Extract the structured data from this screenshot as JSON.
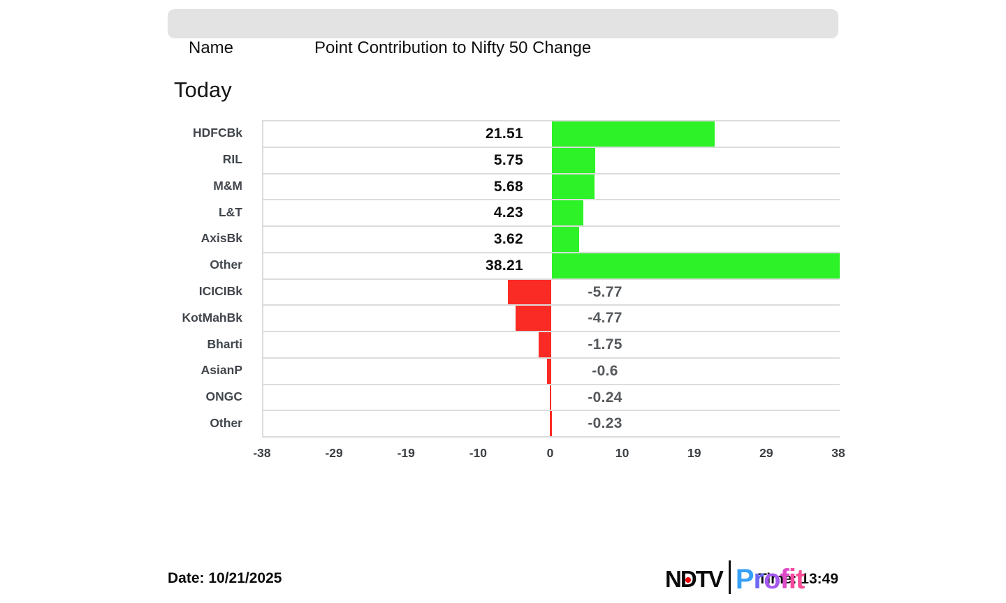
{
  "header": {
    "name_label": "Name",
    "title": "Point Contribution to Nifty 50 Change"
  },
  "period_label": "Today",
  "chart_data": {
    "type": "bar",
    "orientation": "horizontal",
    "title": "Point Contribution to Nifty 50 Change",
    "categories": [
      "HDFCBk",
      "RIL",
      "M&M",
      "L&T",
      "AxisBk",
      "Other",
      "ICICIBk",
      "KotMahBk",
      "Bharti",
      "AsianP",
      "ONGC",
      "Other"
    ],
    "values": [
      21.51,
      5.75,
      5.68,
      4.23,
      3.62,
      38.21,
      -5.77,
      -4.77,
      -1.75,
      -0.6,
      -0.24,
      -0.23
    ],
    "value_labels": [
      "21.51",
      "5.75",
      "5.68",
      "4.23",
      "3.62",
      "38.21",
      "-5.77",
      "-4.77",
      "-1.75",
      "-0.6",
      "-0.24",
      "-0.23"
    ],
    "xticks": [
      "-38",
      "-29",
      "-19",
      "-10",
      "0",
      "10",
      "19",
      "29",
      "38"
    ],
    "xlim": [
      -38,
      38
    ],
    "grid": false,
    "positive_color": "#2DF228",
    "negative_color": "#FA2B24",
    "legend": null
  },
  "footer": {
    "date": "Date: 10/21/2025",
    "time": "Time: 13:49"
  },
  "logo": {
    "ndtv_left": "N",
    "ndtv_d": "D",
    "ndtv_right": "TV",
    "dot_color": "#ee0000",
    "profit_letters": [
      {
        "ch": "P",
        "color": "#37A0F8"
      },
      {
        "ch": "r",
        "color": "#6E68F3"
      },
      {
        "ch": "o",
        "color": "#A458EF"
      },
      {
        "ch": "f",
        "color": "#DE4BC8"
      },
      {
        "ch": "i",
        "color": "#F6489F"
      },
      {
        "ch": "t",
        "color": "#FA4E97"
      }
    ]
  }
}
